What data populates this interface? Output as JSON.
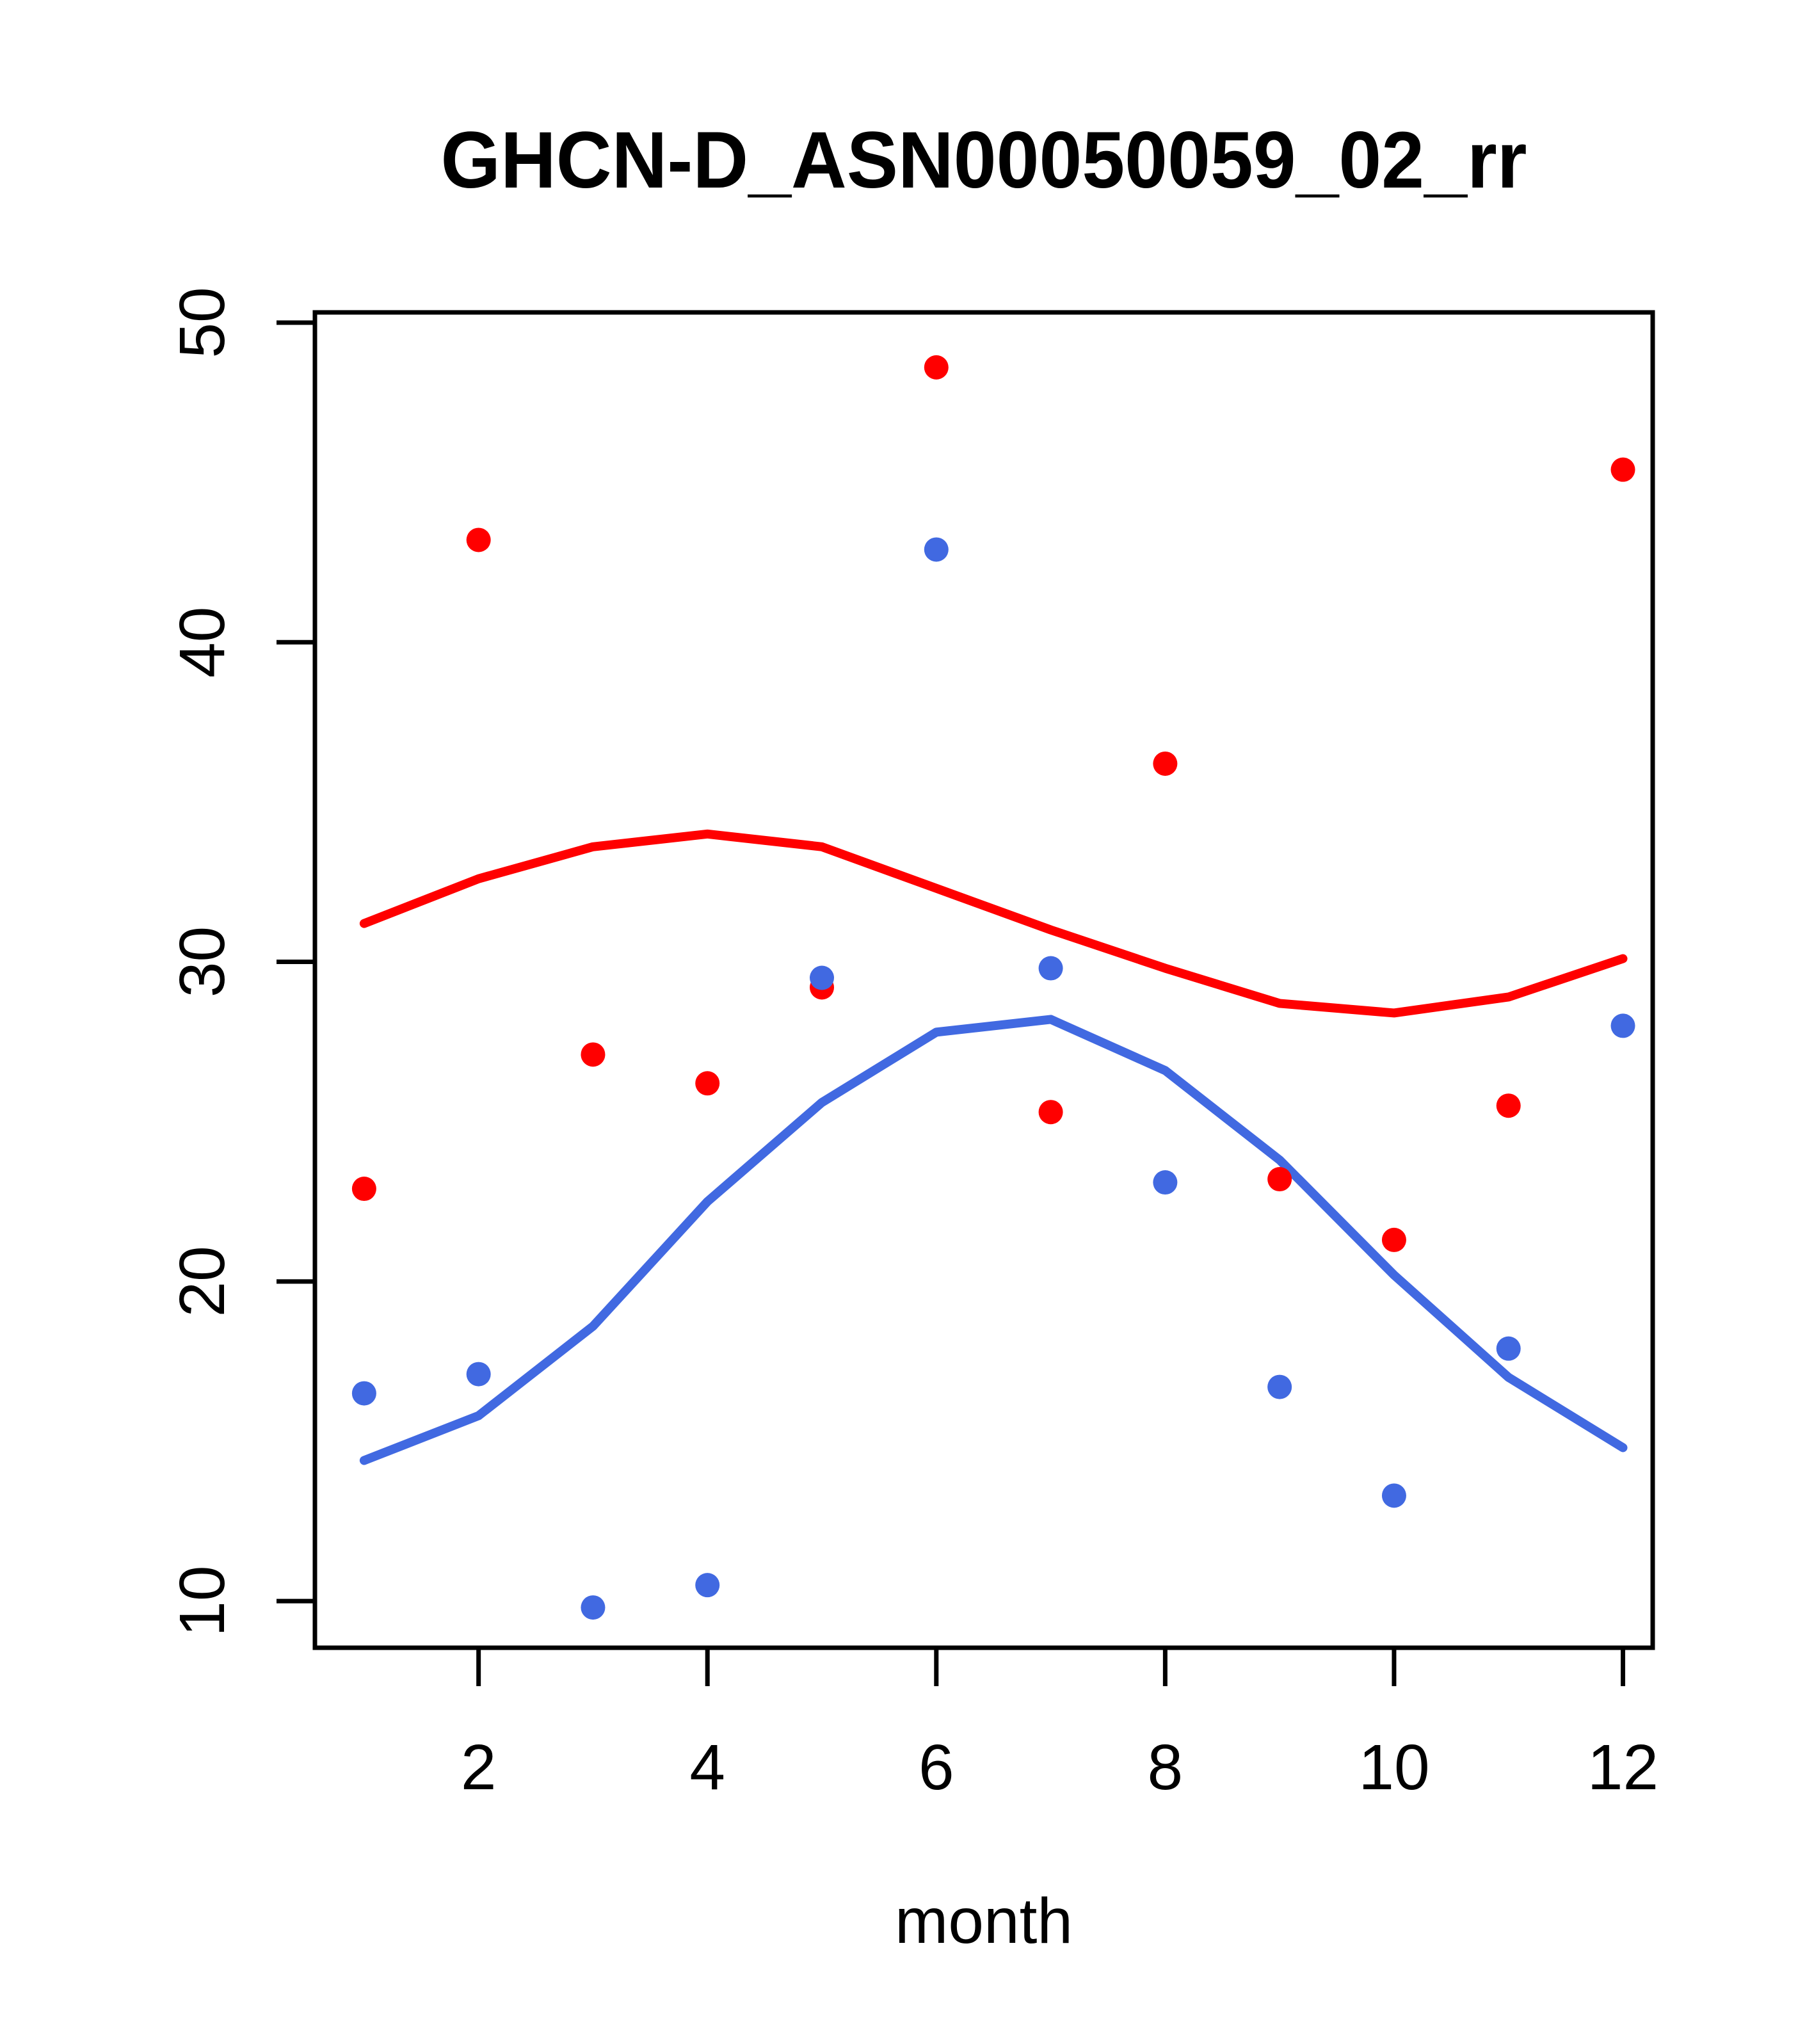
{
  "chart_data": {
    "type": "scatter",
    "title": "GHCN-D_ASN00050059_02_rr",
    "xlabel": "month",
    "ylabel": "",
    "x": [
      1,
      2,
      3,
      4,
      5,
      6,
      7,
      8,
      9,
      10,
      11,
      12
    ],
    "x_ticks": [
      2,
      4,
      6,
      8,
      10,
      12
    ],
    "y_ticks": [
      10,
      20,
      30,
      40,
      50
    ],
    "xlim": [
      0.57,
      12.26
    ],
    "ylim": [
      8.54,
      50.32
    ],
    "grid": false,
    "legend": "none",
    "series": [
      {
        "name": "red-points",
        "kind": "points",
        "color": "#ff0000",
        "values": [
          22.9,
          43.2,
          27.1,
          26.2,
          29.2,
          48.6,
          25.3,
          36.2,
          23.2,
          21.3,
          25.5,
          45.4
        ]
      },
      {
        "name": "blue-points",
        "kind": "points",
        "color": "#4169e1",
        "values": [
          16.5,
          17.1,
          9.8,
          10.5,
          29.5,
          42.9,
          29.8,
          23.1,
          16.7,
          13.3,
          17.9,
          28.0
        ]
      },
      {
        "name": "red-loess-smooth",
        "kind": "line",
        "color": "#ff0000",
        "values": [
          31.2,
          32.6,
          33.6,
          34.0,
          33.6,
          32.3,
          31.0,
          29.8,
          28.7,
          28.4,
          28.9,
          30.1
        ]
      },
      {
        "name": "blue-loess-smooth",
        "kind": "line",
        "color": "#4169e1",
        "values": [
          14.4,
          15.8,
          18.6,
          22.5,
          25.6,
          27.8,
          28.2,
          26.6,
          23.8,
          20.2,
          17.0,
          14.8
        ]
      }
    ],
    "colors": {
      "red_series": "#ff0000",
      "blue_series": "#4169e1",
      "axis": "#000000",
      "background": "#ffffff"
    }
  }
}
